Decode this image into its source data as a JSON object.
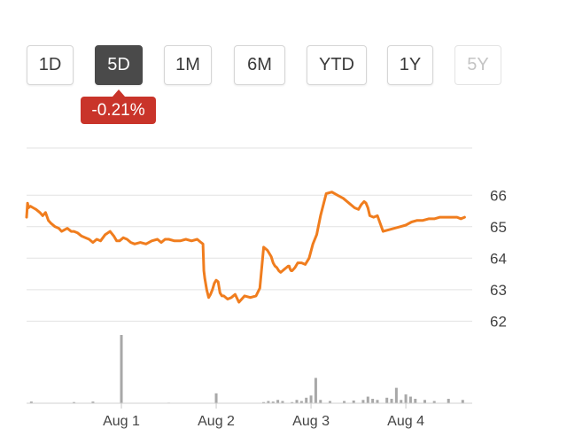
{
  "range_selector": {
    "buttons": [
      {
        "label": "1D",
        "state": "normal"
      },
      {
        "label": "5D",
        "state": "active"
      },
      {
        "label": "1M",
        "state": "normal"
      },
      {
        "label": "6M",
        "state": "normal"
      },
      {
        "label": "YTD",
        "state": "normal"
      },
      {
        "label": "1Y",
        "state": "normal"
      },
      {
        "label": "5Y",
        "state": "disabled"
      }
    ],
    "change_badge": "-0.21%"
  },
  "colors": {
    "line": "#f07d1e",
    "volume": "#a8a8a8",
    "grid": "#e2e2e2",
    "badge": "#c9342a",
    "active_button": "#4a4a4a"
  },
  "chart_data": {
    "type": "line",
    "x_tick_labels": [
      "Aug 1",
      "Aug 2",
      "Aug 3",
      "Aug 4"
    ],
    "x_tick_positions": [
      0.5,
      1.5,
      2.5,
      3.5
    ],
    "xlim": [
      -0.5,
      4.2
    ],
    "ylim": [
      61.7,
      67.5
    ],
    "y_ticks": [
      62,
      63,
      64,
      65,
      66
    ],
    "grid": true,
    "series": [
      {
        "x": [
          -0.5,
          -0.49,
          -0.48,
          -0.46,
          -0.43,
          -0.4,
          -0.36,
          -0.33,
          -0.3,
          -0.27,
          -0.24,
          -0.2,
          -0.16,
          -0.13,
          -0.1,
          -0.07,
          -0.03,
          0.0,
          0.04,
          0.08,
          0.12,
          0.16,
          0.2,
          0.24,
          0.28,
          0.33,
          0.38,
          0.42,
          0.45,
          0.48,
          0.52,
          0.56,
          0.6,
          0.64,
          0.7,
          0.76,
          0.82,
          0.88,
          0.92,
          0.96,
          1.0,
          1.06,
          1.12,
          1.18,
          1.24,
          1.3,
          1.34,
          1.36,
          1.37,
          1.38,
          1.4,
          1.42,
          1.44,
          1.46,
          1.48,
          1.5,
          1.52,
          1.54,
          1.56,
          1.58,
          1.62,
          1.66,
          1.7,
          1.74,
          1.8,
          1.86,
          1.92,
          1.96,
          2.0,
          2.04,
          2.06,
          2.08,
          2.1,
          2.12,
          2.14,
          2.16,
          2.18,
          2.2,
          2.22,
          2.24,
          2.26,
          2.27,
          2.28,
          2.29,
          2.3,
          2.33,
          2.36,
          2.4,
          2.44,
          2.48,
          2.52,
          2.56,
          2.6,
          2.66,
          2.72,
          2.78,
          2.84,
          2.9,
          2.96,
          3.0,
          3.03,
          3.06,
          3.08,
          3.1,
          3.12,
          3.16,
          3.2,
          3.26,
          3.32,
          3.38,
          3.44,
          3.5,
          3.56,
          3.62,
          3.68,
          3.74,
          3.8,
          3.86,
          3.92,
          3.98,
          4.04,
          4.08,
          4.12
        ],
        "y": [
          65.3,
          65.75,
          65.6,
          65.65,
          65.6,
          65.55,
          65.45,
          65.35,
          65.45,
          65.2,
          65.1,
          65.0,
          64.95,
          64.85,
          64.9,
          64.95,
          64.85,
          64.85,
          64.8,
          64.7,
          64.65,
          64.6,
          64.5,
          64.6,
          64.55,
          64.75,
          64.85,
          64.7,
          64.55,
          64.55,
          64.65,
          64.6,
          64.5,
          64.45,
          64.5,
          64.45,
          64.55,
          64.6,
          64.5,
          64.6,
          64.6,
          64.55,
          64.55,
          64.6,
          64.55,
          64.6,
          64.5,
          64.45,
          63.6,
          63.35,
          63.0,
          62.75,
          62.85,
          63.0,
          63.2,
          63.3,
          63.25,
          62.9,
          62.8,
          62.8,
          62.7,
          62.75,
          62.85,
          62.6,
          62.8,
          62.75,
          62.8,
          63.05,
          64.35,
          64.25,
          64.15,
          64.05,
          63.85,
          63.75,
          63.7,
          63.6,
          63.55,
          63.6,
          63.65,
          63.7,
          63.75,
          63.75,
          63.65,
          63.6,
          63.6,
          63.7,
          63.85,
          63.85,
          63.8,
          64.0,
          64.45,
          64.75,
          65.35,
          66.05,
          66.1,
          66.0,
          65.9,
          65.75,
          65.6,
          65.55,
          65.7,
          65.8,
          65.75,
          65.6,
          65.35,
          65.3,
          65.35,
          64.85,
          64.9,
          64.95,
          65.0,
          65.05,
          65.15,
          65.2,
          65.2,
          65.25,
          65.25,
          65.3,
          65.3,
          65.3,
          65.3,
          65.25,
          65.3
        ]
      }
    ],
    "volume": {
      "x": [
        -0.45,
        0.0,
        0.2,
        0.5,
        1.0,
        1.5,
        2.0,
        2.05,
        2.1,
        2.15,
        2.2,
        2.3,
        2.35,
        2.4,
        2.45,
        2.5,
        2.55,
        2.6,
        2.7,
        2.85,
        2.95,
        3.05,
        3.1,
        3.15,
        3.2,
        3.3,
        3.35,
        3.4,
        3.45,
        3.5,
        3.55,
        3.6,
        3.7,
        3.8,
        3.95,
        4.1
      ],
      "values": [
        0.15,
        0.1,
        0.15,
        6.2,
        0.05,
        0.9,
        0.1,
        0.2,
        0.15,
        0.3,
        0.2,
        0.1,
        0.3,
        0.2,
        0.5,
        0.7,
        2.3,
        0.3,
        0.2,
        0.2,
        0.25,
        0.3,
        0.6,
        0.4,
        0.3,
        0.5,
        0.4,
        1.4,
        0.3,
        0.8,
        0.6,
        0.4,
        0.3,
        0.2,
        0.4,
        0.3
      ]
    }
  }
}
